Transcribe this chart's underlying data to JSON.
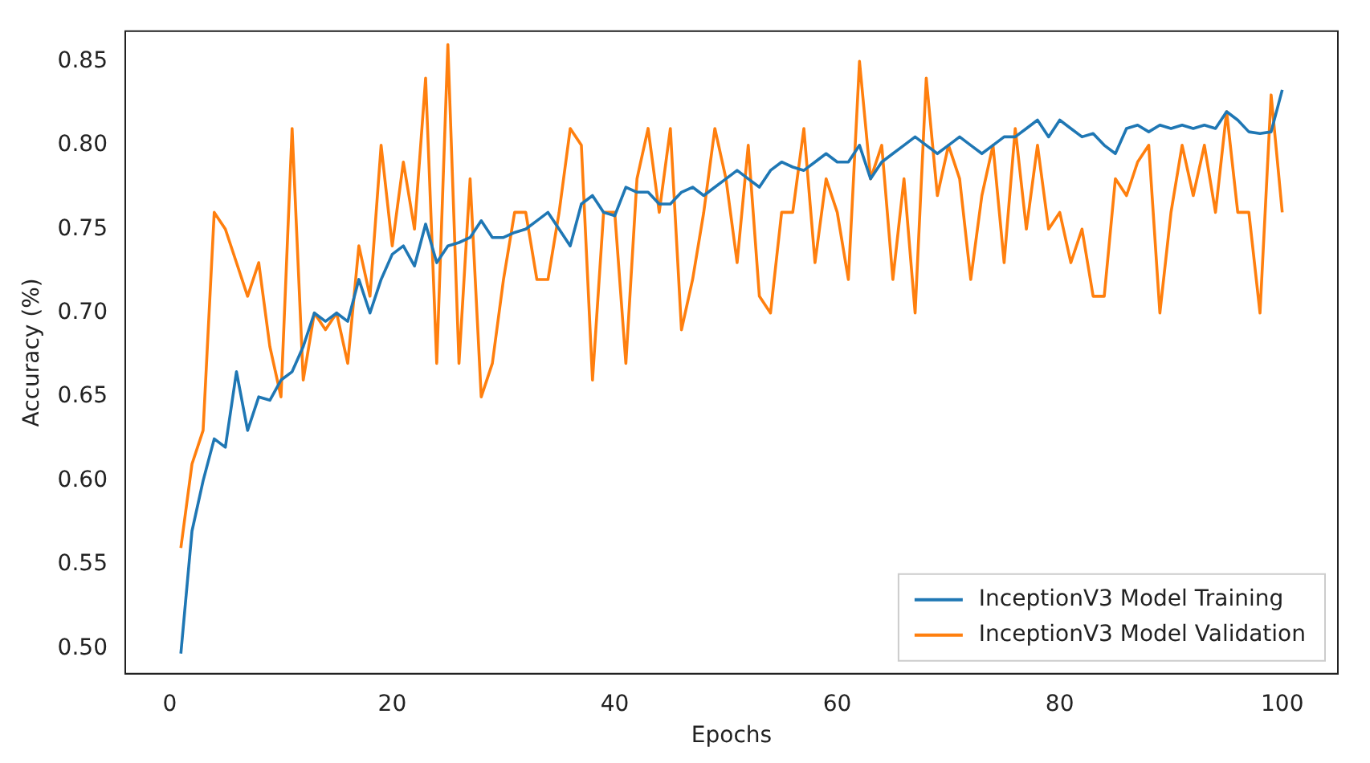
{
  "chart_data": {
    "type": "line",
    "xlabel": "Epochs",
    "ylabel": "Accuracy (%)",
    "x": [
      1,
      2,
      3,
      4,
      5,
      6,
      7,
      8,
      9,
      10,
      11,
      12,
      13,
      14,
      15,
      16,
      17,
      18,
      19,
      20,
      21,
      22,
      23,
      24,
      25,
      26,
      27,
      28,
      29,
      30,
      31,
      32,
      33,
      34,
      35,
      36,
      37,
      38,
      39,
      40,
      41,
      42,
      43,
      44,
      45,
      46,
      47,
      48,
      49,
      50,
      51,
      52,
      53,
      54,
      55,
      56,
      57,
      58,
      59,
      60,
      61,
      62,
      63,
      64,
      65,
      66,
      67,
      68,
      69,
      70,
      71,
      72,
      73,
      74,
      75,
      76,
      77,
      78,
      79,
      80,
      81,
      82,
      83,
      84,
      85,
      86,
      87,
      88,
      89,
      90,
      91,
      92,
      93,
      94,
      95,
      96,
      97,
      98,
      99,
      100
    ],
    "series": [
      {
        "name": "InceptionV3 Model Training",
        "color": "#1f77b4",
        "values": [
          0.497,
          0.57,
          0.6,
          0.625,
          0.62,
          0.665,
          0.63,
          0.65,
          0.648,
          0.66,
          0.665,
          0.68,
          0.7,
          0.695,
          0.7,
          0.695,
          0.72,
          0.7,
          0.72,
          0.735,
          0.74,
          0.728,
          0.753,
          0.73,
          0.74,
          0.742,
          0.745,
          0.755,
          0.745,
          0.745,
          0.748,
          0.75,
          0.755,
          0.76,
          0.75,
          0.74,
          0.765,
          0.77,
          0.76,
          0.758,
          0.775,
          0.772,
          0.772,
          0.765,
          0.765,
          0.772,
          0.775,
          0.77,
          0.775,
          0.78,
          0.785,
          0.78,
          0.775,
          0.785,
          0.79,
          0.787,
          0.785,
          0.79,
          0.795,
          0.79,
          0.79,
          0.8,
          0.78,
          0.79,
          0.795,
          0.8,
          0.805,
          0.8,
          0.795,
          0.8,
          0.805,
          0.8,
          0.795,
          0.8,
          0.805,
          0.805,
          0.81,
          0.815,
          0.805,
          0.815,
          0.81,
          0.805,
          0.807,
          0.8,
          0.795,
          0.81,
          0.812,
          0.808,
          0.812,
          0.81,
          0.812,
          0.81,
          0.812,
          0.81,
          0.82,
          0.815,
          0.808,
          0.807,
          0.808,
          0.833
        ]
      },
      {
        "name": "InceptionV3 Model Validation",
        "color": "#ff7f0e",
        "values": [
          0.56,
          0.61,
          0.63,
          0.76,
          0.75,
          0.73,
          0.71,
          0.73,
          0.68,
          0.65,
          0.81,
          0.66,
          0.7,
          0.69,
          0.7,
          0.67,
          0.74,
          0.71,
          0.8,
          0.74,
          0.79,
          0.75,
          0.84,
          0.67,
          0.86,
          0.67,
          0.78,
          0.65,
          0.67,
          0.72,
          0.76,
          0.76,
          0.72,
          0.72,
          0.76,
          0.81,
          0.8,
          0.66,
          0.76,
          0.76,
          0.67,
          0.78,
          0.81,
          0.76,
          0.81,
          0.69,
          0.72,
          0.76,
          0.81,
          0.78,
          0.73,
          0.8,
          0.71,
          0.7,
          0.76,
          0.76,
          0.81,
          0.73,
          0.78,
          0.76,
          0.72,
          0.85,
          0.78,
          0.8,
          0.72,
          0.78,
          0.7,
          0.84,
          0.77,
          0.8,
          0.78,
          0.72,
          0.77,
          0.8,
          0.73,
          0.81,
          0.75,
          0.8,
          0.75,
          0.76,
          0.73,
          0.75,
          0.71,
          0.71,
          0.78,
          0.77,
          0.79,
          0.8,
          0.7,
          0.76,
          0.8,
          0.77,
          0.8,
          0.76,
          0.82,
          0.76,
          0.76,
          0.7,
          0.83,
          0.76
        ]
      }
    ],
    "xlim": [
      -4,
      105
    ],
    "xticks": [
      0,
      20,
      40,
      60,
      80,
      100
    ],
    "ylim": [
      0.485,
      0.868
    ],
    "yticks": [
      {
        "value": 0.5,
        "label": "0.50"
      },
      {
        "value": 0.55,
        "label": "0.55"
      },
      {
        "value": 0.6,
        "label": "0.60"
      },
      {
        "value": 0.65,
        "label": "0.65"
      },
      {
        "value": 0.7,
        "label": "0.70"
      },
      {
        "value": 0.75,
        "label": "0.75"
      },
      {
        "value": 0.8,
        "label": "0.80"
      },
      {
        "value": 0.85,
        "label": "0.85"
      }
    ],
    "grid": false,
    "legend": "bottom right",
    "marker": "none",
    "line_style": "solid"
  }
}
